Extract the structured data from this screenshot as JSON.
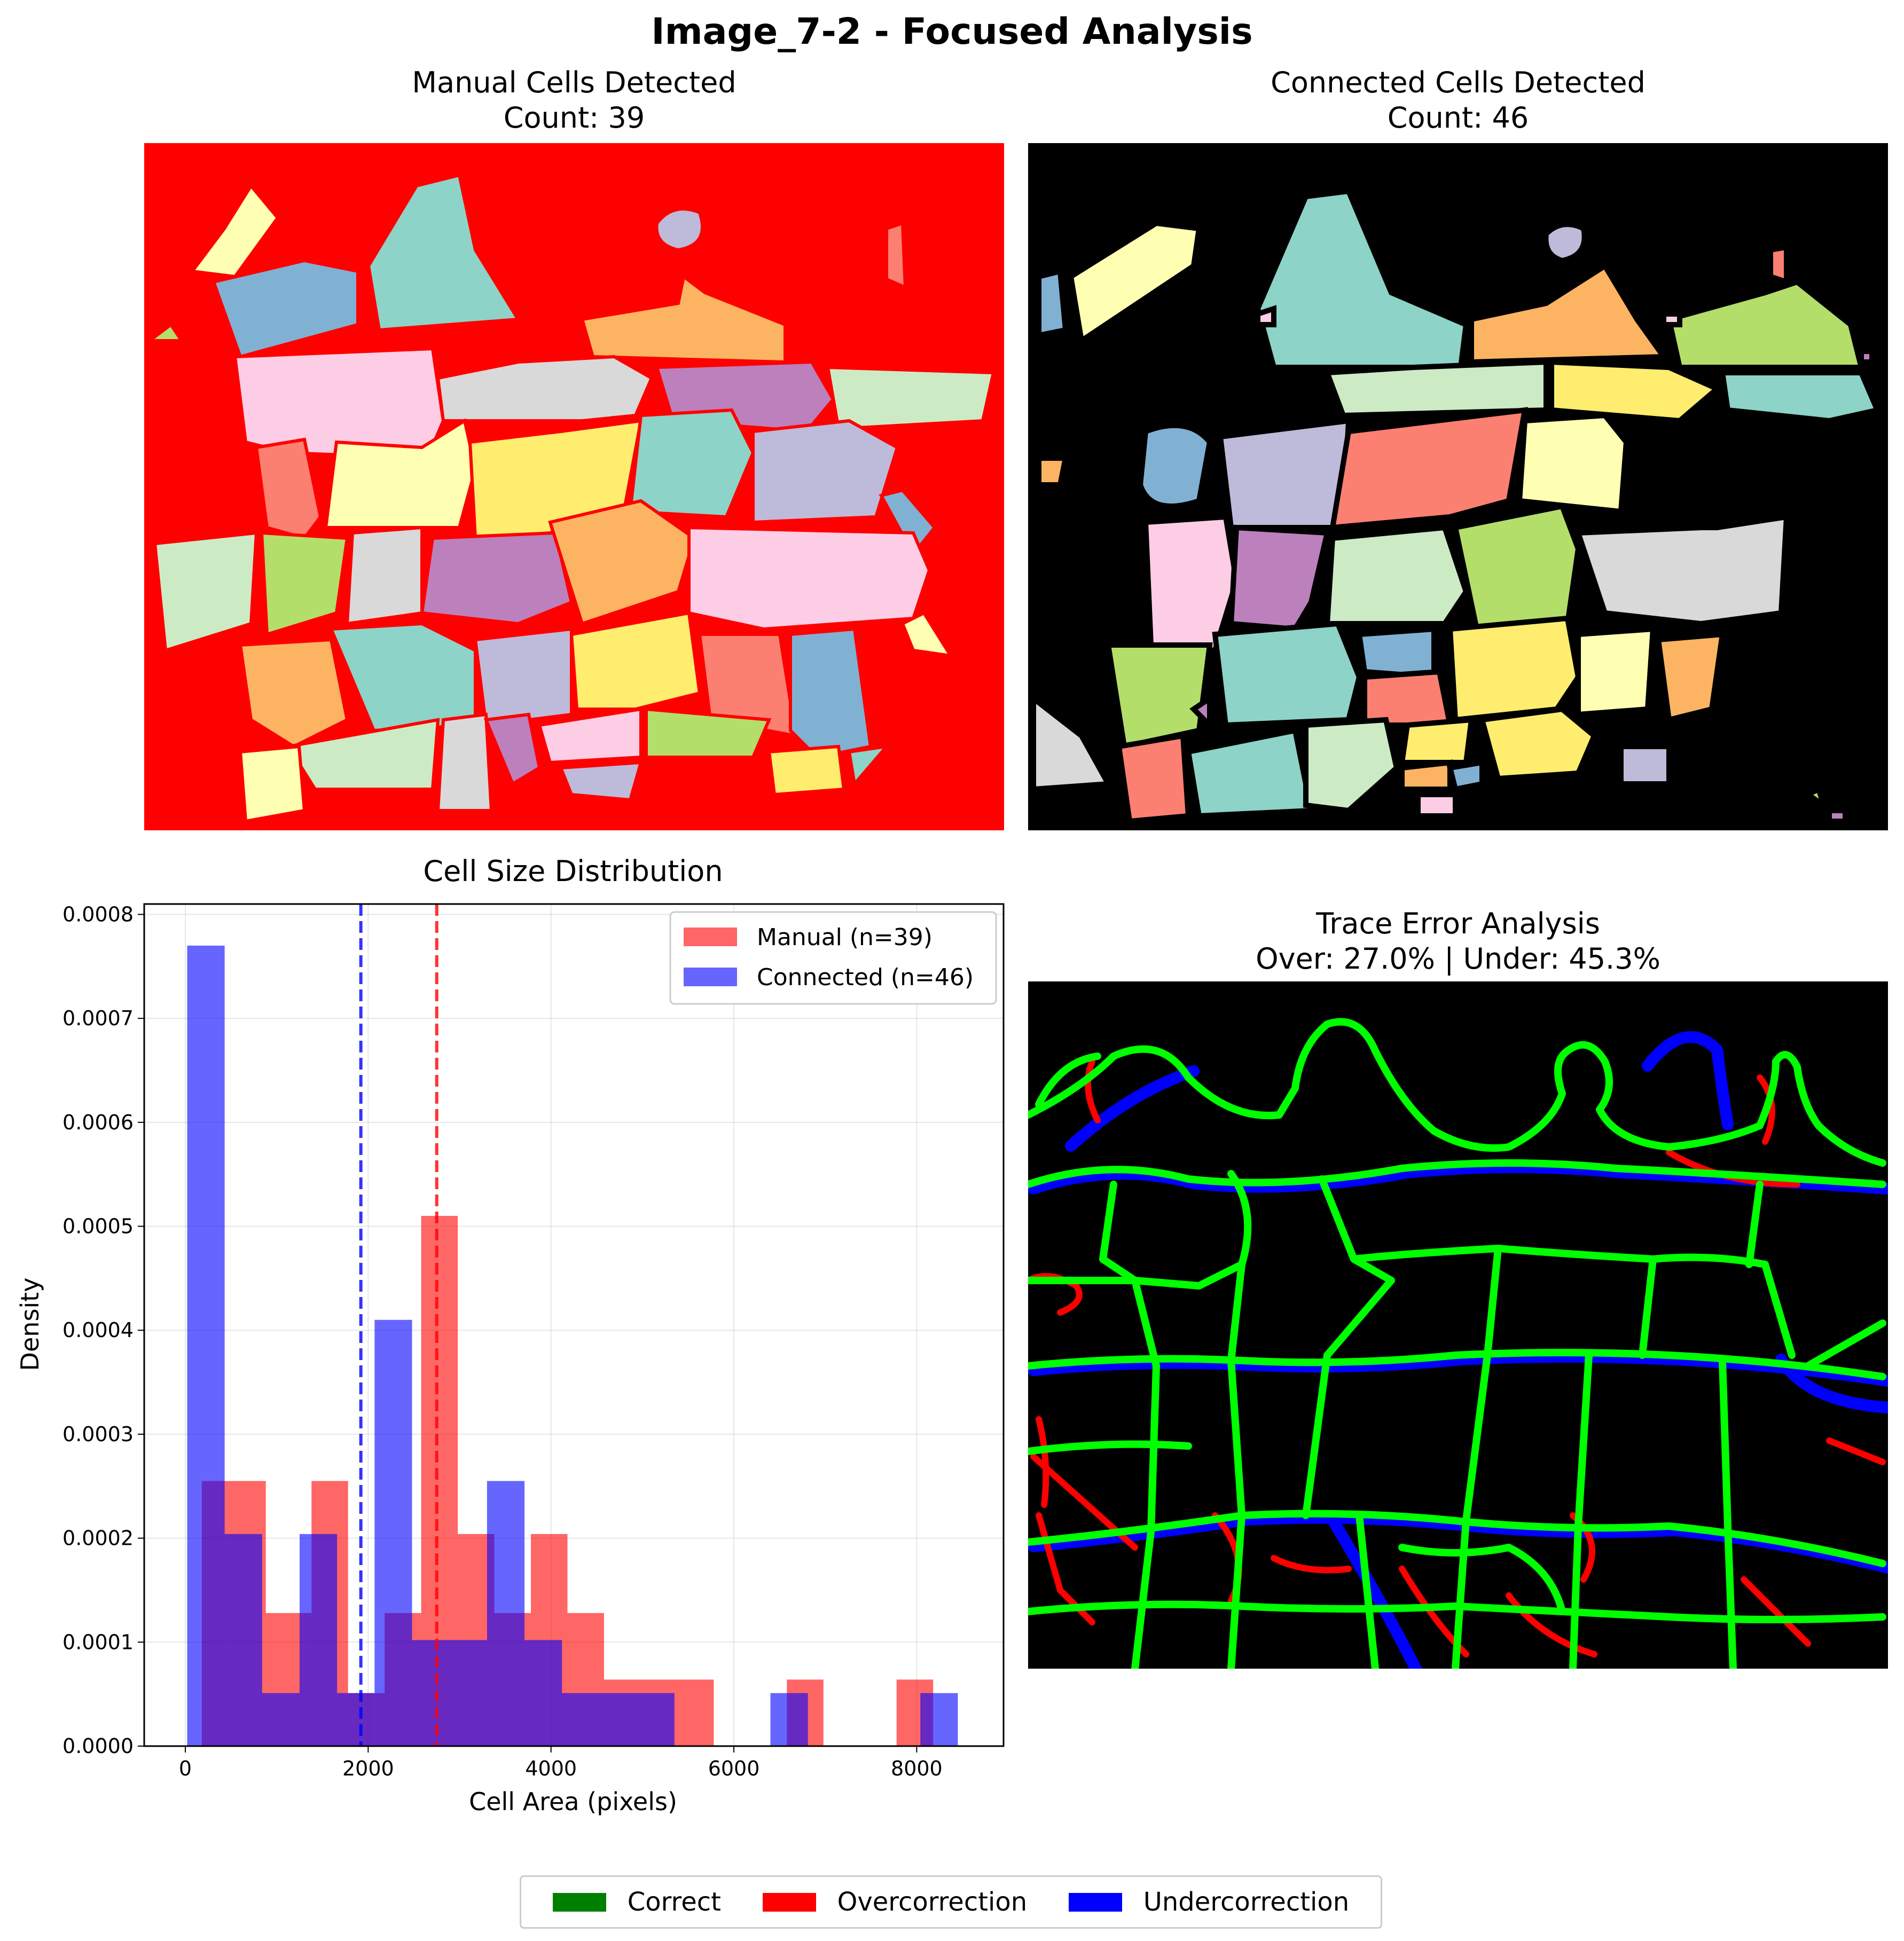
{
  "figure_title": "Image_7-2 - Focused Analysis",
  "panels": {
    "manual": {
      "title_line1": "Manual Cells Detected",
      "title_line2": "Count: 39"
    },
    "connected": {
      "title_line1": "Connected Cells Detected",
      "title_line2": "Count: 46"
    },
    "trace": {
      "title_line1": "Trace Error Analysis",
      "title_line2": "Over: 27.0% | Under: 45.3%"
    }
  },
  "figure_legend": [
    {
      "label": "Correct",
      "color": "#008000"
    },
    {
      "label": "Overcorrection",
      "color": "#ff0000"
    },
    {
      "label": "Undercorrection",
      "color": "#0000ff"
    }
  ],
  "colors": {
    "manual_background": "#ff0000",
    "connected_background": "#000000",
    "trace_background": "#000000",
    "trace_correct": "#00ff00",
    "trace_over": "#ff0000",
    "trace_under": "#0000ff"
  },
  "chart_data": {
    "type": "bar",
    "title": "Cell Size Distribution",
    "xlabel": "Cell Area (pixels)",
    "ylabel": "Density",
    "xlim": [
      -450,
      8950
    ],
    "ylim": [
      0,
      0.00081
    ],
    "xticks": [
      0,
      2000,
      4000,
      6000,
      8000
    ],
    "yticks": [
      "0.0000",
      "0.0001",
      "0.0002",
      "0.0003",
      "0.0004",
      "0.0005",
      "0.0006",
      "0.0007",
      "0.0008"
    ],
    "grid": true,
    "legend_position": "upper right",
    "series": [
      {
        "name": "Manual (n=39)",
        "color": "#ff0000",
        "opacity": 0.6,
        "mean_line": 2750,
        "bins": [
          [
            180,
            480,
            0.000255
          ],
          [
            480,
            880,
            0.000255
          ],
          [
            880,
            1180,
            0.000128
          ],
          [
            1180,
            1380,
            0.000128
          ],
          [
            1380,
            1780,
            0.000255
          ],
          [
            1780,
            2180,
            5.1e-05
          ],
          [
            2180,
            2580,
            0.000128
          ],
          [
            2580,
            2980,
            0.00051
          ],
          [
            2980,
            3380,
            0.000204
          ],
          [
            3380,
            3780,
            0.000128
          ],
          [
            3780,
            4180,
            0.000204
          ],
          [
            4180,
            4580,
            0.000128
          ],
          [
            4580,
            5780,
            6.4e-05
          ],
          [
            6580,
            6980,
            6.4e-05
          ],
          [
            7780,
            8180,
            6.4e-05
          ]
        ]
      },
      {
        "name": "Connected (n=46)",
        "color": "#0000ff",
        "opacity": 0.6,
        "mean_line": 1920,
        "bins": [
          [
            20,
            430,
            0.00077
          ],
          [
            430,
            840,
            0.000204
          ],
          [
            840,
            1250,
            5.1e-05
          ],
          [
            1250,
            1660,
            0.000204
          ],
          [
            1660,
            2070,
            5.1e-05
          ],
          [
            2070,
            2480,
            0.00041
          ],
          [
            2480,
            2890,
            0.000102
          ],
          [
            2890,
            3300,
            0.000102
          ],
          [
            3300,
            3710,
            0.000255
          ],
          [
            3710,
            4120,
            0.000102
          ],
          [
            4120,
            4530,
            5.1e-05
          ],
          [
            4530,
            5350,
            5.1e-05
          ],
          [
            6400,
            6810,
            5.1e-05
          ],
          [
            8040,
            8450,
            5.1e-05
          ]
        ]
      }
    ]
  }
}
